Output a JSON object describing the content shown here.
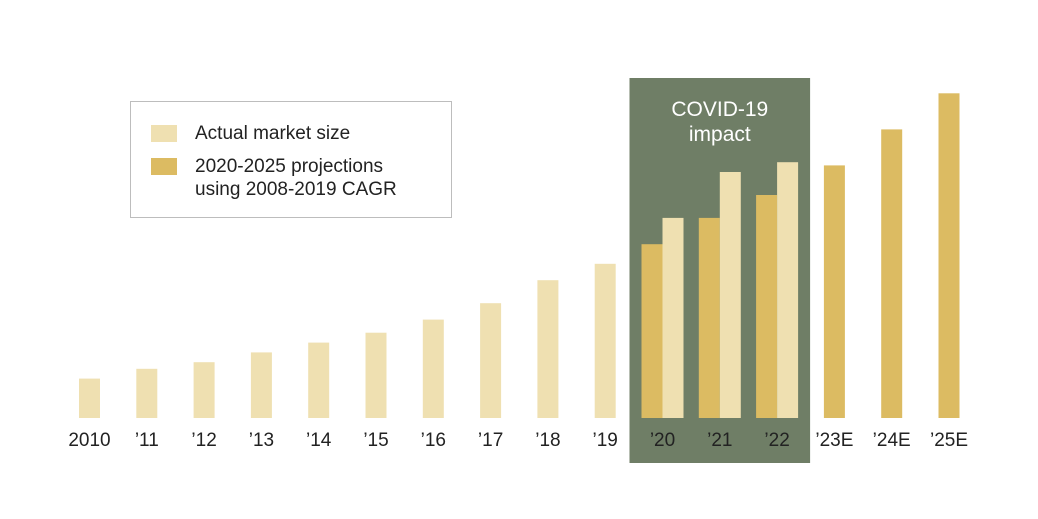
{
  "chart_data": {
    "type": "bar",
    "title": "",
    "xlabel": "",
    "ylabel": "",
    "ylim": [
      0,
      100
    ],
    "categories": [
      "2010",
      "’11",
      "’12",
      "’13",
      "’14",
      "’15",
      "’16",
      "’17",
      "’18",
      "’19",
      "’20",
      "’21",
      "’22",
      "’23E",
      "’24E",
      "’25E"
    ],
    "series": [
      {
        "name": "Actual market size",
        "color": "#efe0b1",
        "values": [
          12,
          15,
          17,
          20,
          23,
          26,
          30,
          35,
          42,
          47,
          61,
          75,
          78,
          null,
          null,
          null
        ]
      },
      {
        "name": "2020-2025 projections\nusing 2008-2019 CAGR",
        "color": "#dcbb62",
        "values": [
          null,
          null,
          null,
          null,
          null,
          null,
          null,
          null,
          null,
          null,
          53,
          61,
          68,
          77,
          88,
          99
        ]
      }
    ],
    "annotation": {
      "text_line1": "COVID-19",
      "text_line2": "impact",
      "color": "#6f7e66",
      "covers_categories": [
        "’20",
        "’21",
        "’22"
      ]
    },
    "legend_position": "top-left"
  }
}
